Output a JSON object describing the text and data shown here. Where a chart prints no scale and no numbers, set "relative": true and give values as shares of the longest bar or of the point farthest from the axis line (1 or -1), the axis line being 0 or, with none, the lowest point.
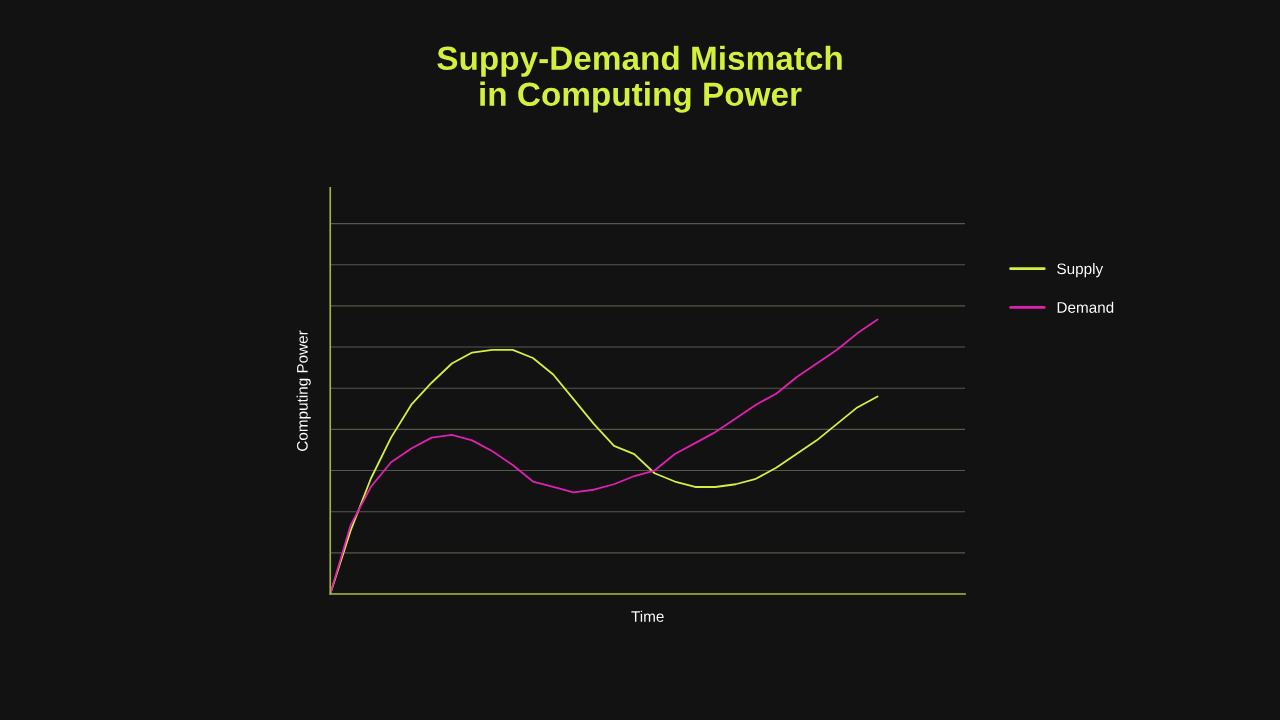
{
  "chart_data": {
    "type": "line",
    "title": "Suppy-Demand Mismatch\nin Computing Power",
    "xlabel": "Time",
    "ylabel": "Computing Power",
    "relative": true,
    "grid": "y",
    "legend": "right",
    "tick_labels": false,
    "categories": [
      null,
      null,
      null,
      null,
      null,
      null,
      null,
      null,
      null,
      null,
      null,
      null,
      null,
      null,
      null,
      null,
      null,
      null,
      null,
      null,
      null,
      null,
      null,
      null,
      null,
      null,
      null,
      null
    ],
    "series": [
      {
        "name": "Supply",
        "color": "#d4f03c",
        "values": [
          0,
          0.23,
          0.42,
          0.57,
          0.69,
          0.77,
          0.84,
          0.88,
          0.89,
          0.89,
          0.86,
          0.8,
          0.71,
          0.62,
          0.54,
          0.51,
          0.44,
          0.41,
          0.39,
          0.39,
          0.4,
          0.42,
          0.46,
          0.51,
          0.56,
          0.62,
          0.68,
          0.72
        ]
      },
      {
        "name": "Demand",
        "color": "#e020b0",
        "values": [
          0,
          0.25,
          0.39,
          0.48,
          0.53,
          0.57,
          0.58,
          0.56,
          0.52,
          0.47,
          0.41,
          0.39,
          0.37,
          0.38,
          0.4,
          0.43,
          0.45,
          0.51,
          0.55,
          0.59,
          0.64,
          0.69,
          0.73,
          0.79,
          0.84,
          0.89,
          0.95,
          1
        ]
      }
    ]
  }
}
